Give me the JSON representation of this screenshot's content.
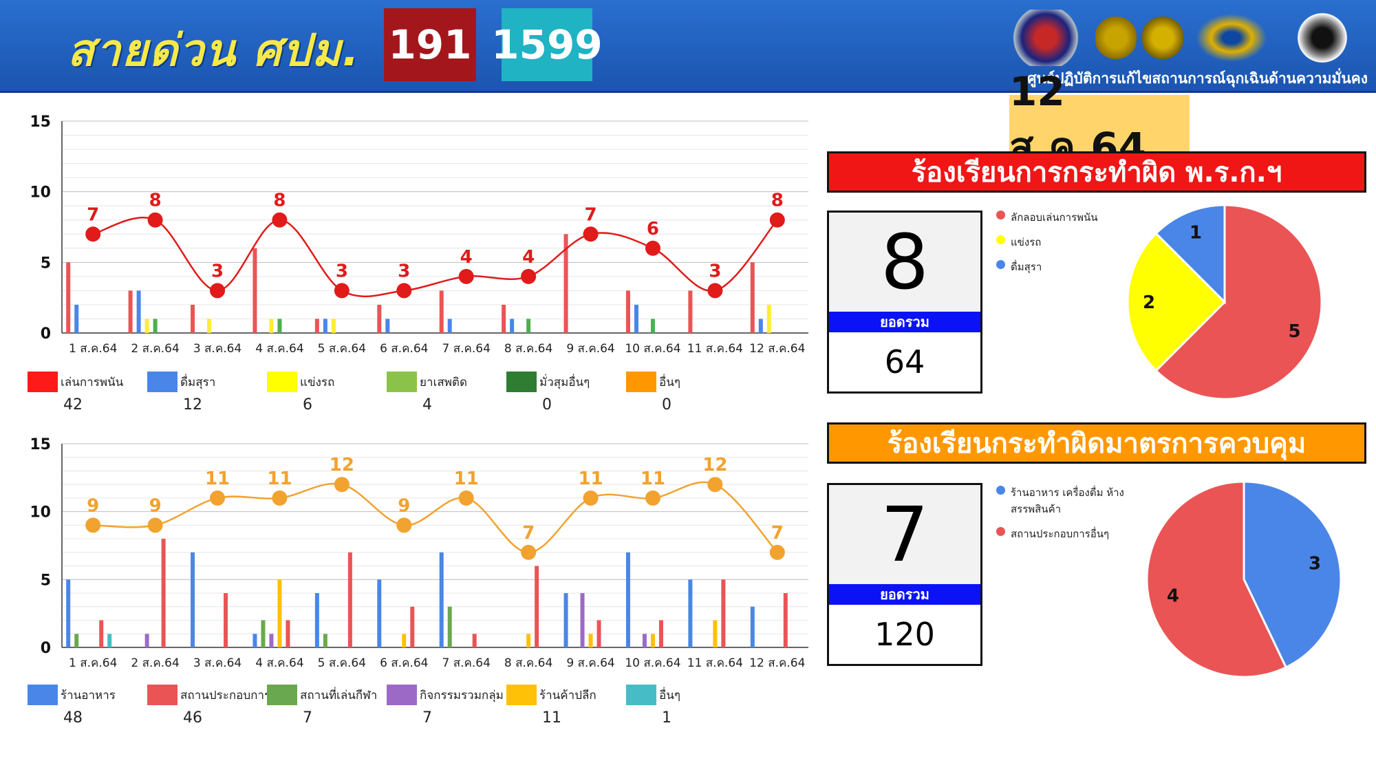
{
  "header": {
    "hotline_title": "สายด่วน ศปม.",
    "hotline_1": "191",
    "hotline_2": "1599",
    "org_name": "ศูนย์ปฏิบัติการแก้ไขสถานการณ์ฉุกเฉินด้านความมั่นคง"
  },
  "date_badge": "12 ส.ค.64",
  "panel1": {
    "banner": "ร้องเรียนการกระทำผิด พ.ร.ก.ฯ",
    "today_count": "8",
    "total_label": "ยอดรวม",
    "total": "64",
    "pie_legend": [
      "ลักลอบเล่นการพนัน",
      "แข่งรถ",
      "ดื่มสุรา"
    ]
  },
  "panel2": {
    "banner": "ร้องเรียนกระทำผิดมาตรการควบคุม",
    "today_count": "7",
    "total_label": "ยอดรวม",
    "total": "120",
    "pie_legend": [
      "ร้านอาหาร เครื่องดื่ม ห้างสรรพสินค้า",
      "สถานประกอบการอื่นๆ"
    ]
  },
  "chart_data": [
    {
      "type": "bar",
      "categories": [
        "1 ส.ค.64",
        "2 ส.ค.64",
        "3 ส.ค.64",
        "4 ส.ค.64",
        "5 ส.ค.64",
        "6 ส.ค.64",
        "7 ส.ค.64",
        "8 ส.ค.64",
        "9 ส.ค.64",
        "10 ส.ค.64",
        "11 ส.ค.64",
        "12 ส.ค.64"
      ],
      "ylim": [
        0,
        15
      ],
      "yticks": [
        0,
        5,
        10,
        15
      ],
      "grid": true,
      "series": [
        {
          "name": "เล่นการพนัน",
          "color": "#ea5455",
          "total": "42",
          "values": [
            5,
            3,
            2,
            6,
            1,
            2,
            3,
            2,
            7,
            3,
            3,
            5
          ]
        },
        {
          "name": "ดื่มสุรา",
          "color": "#4a86e8",
          "total": "12",
          "values": [
            2,
            3,
            0,
            0,
            1,
            1,
            1,
            1,
            0,
            2,
            0,
            1
          ]
        },
        {
          "name": "แข่งรถ",
          "color": "#ffeb3b",
          "total": "6",
          "values": [
            0,
            1,
            1,
            1,
            1,
            0,
            0,
            0,
            0,
            0,
            0,
            2
          ]
        },
        {
          "name": "ยาเสพติด",
          "color": "#4caf50",
          "total": "4",
          "values": [
            0,
            1,
            0,
            1,
            0,
            0,
            0,
            1,
            0,
            1,
            0,
            0
          ]
        },
        {
          "name": "มั่วสุมอื่นๆ",
          "color": "#2e7d32",
          "total": "0",
          "values": [
            0,
            0,
            0,
            0,
            0,
            0,
            0,
            0,
            0,
            0,
            0,
            0
          ]
        },
        {
          "name": "อื่นๆ",
          "color": "#ff9800",
          "total": "0",
          "values": [
            0,
            0,
            0,
            0,
            0,
            0,
            0,
            0,
            0,
            0,
            0,
            0
          ]
        }
      ],
      "line": {
        "color": "#e11a1a",
        "values": [
          7,
          8,
          3,
          8,
          3,
          3,
          4,
          4,
          7,
          6,
          3,
          8
        ]
      },
      "legend_swatch_colors": [
        "#ff1a1a",
        "#4a86e8",
        "#ffff00",
        "#8bc34a",
        "#2e7d32",
        "#ff9800"
      ]
    },
    {
      "type": "bar",
      "categories": [
        "1 ส.ค.64",
        "2 ส.ค.64",
        "3 ส.ค.64",
        "4 ส.ค.64",
        "5 ส.ค.64",
        "6 ส.ค.64",
        "7 ส.ค.64",
        "8 ส.ค.64",
        "9 ส.ค.64",
        "10 ส.ค.64",
        "11 ส.ค.64",
        "12 ส.ค.64"
      ],
      "ylim": [
        0,
        15
      ],
      "yticks": [
        0,
        5,
        10,
        15
      ],
      "grid": true,
      "series": [
        {
          "name": "ร้านอาหาร",
          "color": "#4a86e8",
          "total": "48",
          "values": [
            5,
            0,
            7,
            1,
            4,
            5,
            7,
            0,
            4,
            7,
            5,
            3
          ]
        },
        {
          "name": "สถานที่เล่นกีฬา",
          "color": "#6aa84f",
          "total": "7",
          "values": [
            1,
            0,
            0,
            2,
            1,
            0,
            3,
            0,
            0,
            0,
            0,
            0
          ]
        },
        {
          "name": "กิจกรรมรวมกลุ่ม",
          "color": "#9c6ac6",
          "total": "7",
          "values": [
            0,
            1,
            0,
            1,
            0,
            0,
            0,
            0,
            4,
            1,
            0,
            0
          ]
        },
        {
          "name": "ร้านค้าปลีก",
          "color": "#ffc107",
          "total": "11",
          "values": [
            0,
            0,
            0,
            5,
            0,
            1,
            0,
            1,
            1,
            1,
            2,
            0
          ]
        },
        {
          "name": "สถานประกอบการฯ",
          "color": "#ea5455",
          "total": "46",
          "values": [
            2,
            8,
            4,
            2,
            7,
            3,
            1,
            6,
            2,
            2,
            5,
            4
          ]
        },
        {
          "name": "อื่นๆ",
          "color": "#46bdc6",
          "total": "1",
          "values": [
            1,
            0,
            0,
            0,
            0,
            0,
            0,
            0,
            0,
            0,
            0,
            0
          ]
        }
      ],
      "line": {
        "color": "#f2a22e",
        "values": [
          9,
          9,
          11,
          11,
          12,
          9,
          11,
          7,
          11,
          11,
          12,
          7
        ]
      },
      "legend_order": [
        "ร้านอาหาร",
        "สถานประกอบการฯ",
        "สถานที่เล่นกีฬา",
        "กิจกรรมรวมกลุ่ม",
        "ร้านค้าปลีก",
        "อื่นๆ"
      ]
    },
    {
      "type": "pie",
      "labels": [
        "ลักลอบเล่นการพนัน",
        "แข่งรถ",
        "ดื่มสุรา"
      ],
      "values": [
        5,
        2,
        1
      ],
      "colors": [
        "#ea5455",
        "#ffff00",
        "#4a86e8"
      ]
    },
    {
      "type": "pie",
      "labels": [
        "ร้านอาหาร เครื่องดื่ม ห้างสรรพสินค้า",
        "สถานประกอบการอื่นๆ"
      ],
      "values": [
        3,
        4
      ],
      "colors": [
        "#4a86e8",
        "#ea5455"
      ]
    }
  ]
}
